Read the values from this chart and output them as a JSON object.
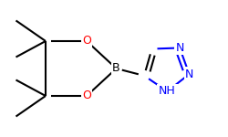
{
  "bg_color": "#ffffff",
  "bond_color": "#000000",
  "N_color": "#0000ff",
  "O_color": "#ff0000",
  "B_label": "B",
  "O_label": "O",
  "N_label": "N",
  "NH_label": "NH",
  "bond_lw": 1.5,
  "font_size": 9
}
